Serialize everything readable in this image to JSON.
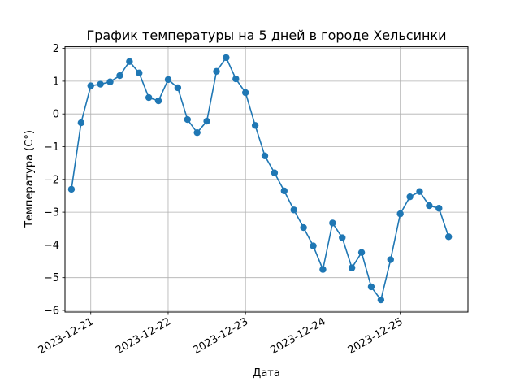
{
  "chart_data": {
    "type": "line",
    "title": "График температуры на 5 дней в городе Хельсинки",
    "xlabel": "Дата",
    "ylabel": "Температура (C°)",
    "grid": true,
    "ylim": [
      -6.05,
      2.05
    ],
    "xlim": [
      "2023-12-20T16:00",
      "2023-12-25T21:00"
    ],
    "x_ticks": [
      "2023-12-21",
      "2023-12-22",
      "2023-12-23",
      "2023-12-24",
      "2023-12-25"
    ],
    "y_ticks": [
      2,
      1,
      0,
      -1,
      -2,
      -3,
      -4,
      -5,
      -6
    ],
    "y_tick_labels": [
      "2",
      "1",
      "0",
      "−1",
      "−2",
      "−3",
      "−4",
      "−5",
      "−6"
    ],
    "color": "#1f77b4",
    "series": [
      {
        "x": [
          "2023-12-20 18:00",
          "2023-12-20 21:00",
          "2023-12-21 00:00",
          "2023-12-21 03:00",
          "2023-12-21 06:00",
          "2023-12-21 09:00",
          "2023-12-21 12:00",
          "2023-12-21 15:00",
          "2023-12-21 18:00",
          "2023-12-21 21:00",
          "2023-12-22 00:00",
          "2023-12-22 03:00",
          "2023-12-22 06:00",
          "2023-12-22 09:00",
          "2023-12-22 12:00",
          "2023-12-22 15:00",
          "2023-12-22 18:00",
          "2023-12-22 21:00",
          "2023-12-23 00:00",
          "2023-12-23 03:00",
          "2023-12-23 06:00",
          "2023-12-23 09:00",
          "2023-12-23 12:00",
          "2023-12-23 15:00",
          "2023-12-23 18:00",
          "2023-12-23 21:00",
          "2023-12-24 00:00",
          "2023-12-24 03:00",
          "2023-12-24 06:00",
          "2023-12-24 09:00",
          "2023-12-24 12:00",
          "2023-12-24 15:00",
          "2023-12-24 18:00",
          "2023-12-24 21:00",
          "2023-12-25 00:00",
          "2023-12-25 03:00",
          "2023-12-25 06:00",
          "2023-12-25 09:00",
          "2023-12-25 12:00",
          "2023-12-25 15:00"
        ],
        "y": [
          -2.3,
          -0.27,
          0.86,
          0.91,
          0.98,
          1.17,
          1.6,
          1.25,
          0.5,
          0.4,
          1.05,
          0.8,
          -0.17,
          -0.57,
          -0.22,
          1.3,
          1.72,
          1.07,
          0.65,
          -0.35,
          -1.28,
          -1.8,
          -2.35,
          -2.93,
          -3.47,
          -4.03,
          -4.75,
          -3.33,
          -3.78,
          -4.7,
          -4.23,
          -5.28,
          -5.68,
          -4.45,
          -3.05,
          -2.53,
          -2.37,
          -2.8,
          -2.88,
          -3.75
        ]
      }
    ]
  }
}
